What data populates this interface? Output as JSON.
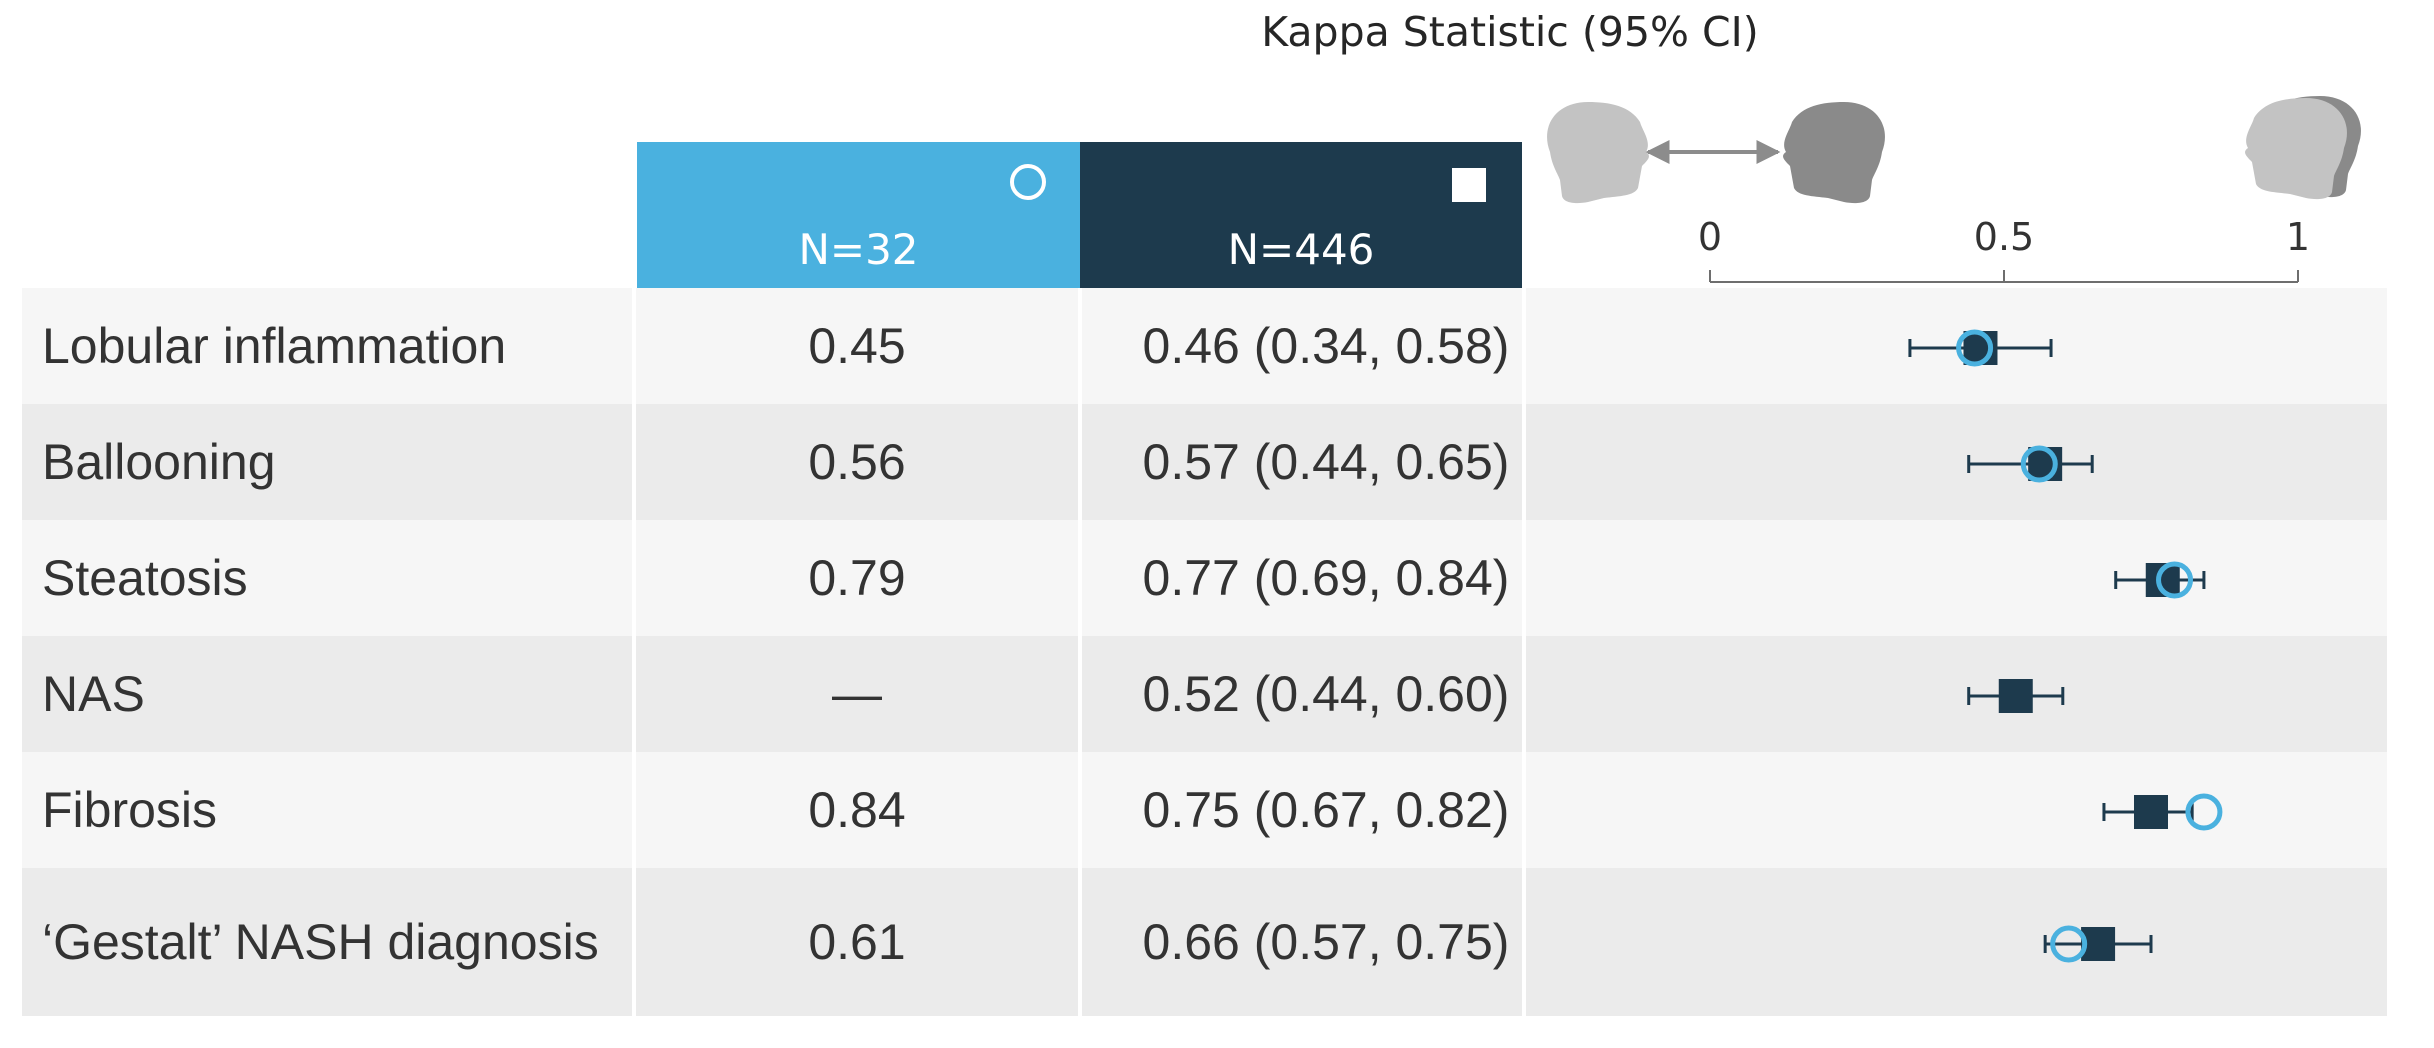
{
  "chart_data": {
    "type": "forest",
    "title": "Kappa Statistic (95% CI)",
    "xlim": [
      0,
      1
    ],
    "xticks": [
      0,
      0.5,
      1
    ],
    "xtick_labels": [
      "0",
      "0.5",
      "1"
    ],
    "columns": [
      {
        "label": "N=32",
        "marker": "circle",
        "color": "#4ab1df"
      },
      {
        "label": "N=446",
        "marker": "square",
        "color": "#1d3a4d"
      }
    ],
    "rows": [
      {
        "label": "Lobular inflammation",
        "n32": 0.45,
        "n32_text": "0.45",
        "n446": 0.46,
        "ci": [
          0.34,
          0.58
        ],
        "n446_text": "0.46 (0.34, 0.58)"
      },
      {
        "label": "Ballooning",
        "n32": 0.56,
        "n32_text": "0.56",
        "n446": 0.57,
        "ci": [
          0.44,
          0.65
        ],
        "n446_text": "0.57 (0.44, 0.65)"
      },
      {
        "label": "Steatosis",
        "n32": 0.79,
        "n32_text": "0.79",
        "n446": 0.77,
        "ci": [
          0.69,
          0.84
        ],
        "n446_text": "0.77 (0.69, 0.84)"
      },
      {
        "label": "NAS",
        "n32": null,
        "n32_text": "—",
        "n446": 0.52,
        "ci": [
          0.44,
          0.6
        ],
        "n446_text": "0.52 (0.44, 0.60)"
      },
      {
        "label": "Fibrosis",
        "n32": 0.84,
        "n32_text": "0.84",
        "n446": 0.75,
        "ci": [
          0.67,
          0.82
        ],
        "n446_text": "0.75 (0.67, 0.82)"
      },
      {
        "label": "‘Gestalt’ NASH diagnosis",
        "n32": 0.61,
        "n32_text": "0.61",
        "n446": 0.66,
        "ci": [
          0.57,
          0.75
        ],
        "n446_text": "0.66 (0.57, 0.75)"
      }
    ]
  },
  "icons": {
    "inter_rater": "two-heads-arrow-icon",
    "intra_rater": "overlapping-heads-icon"
  }
}
